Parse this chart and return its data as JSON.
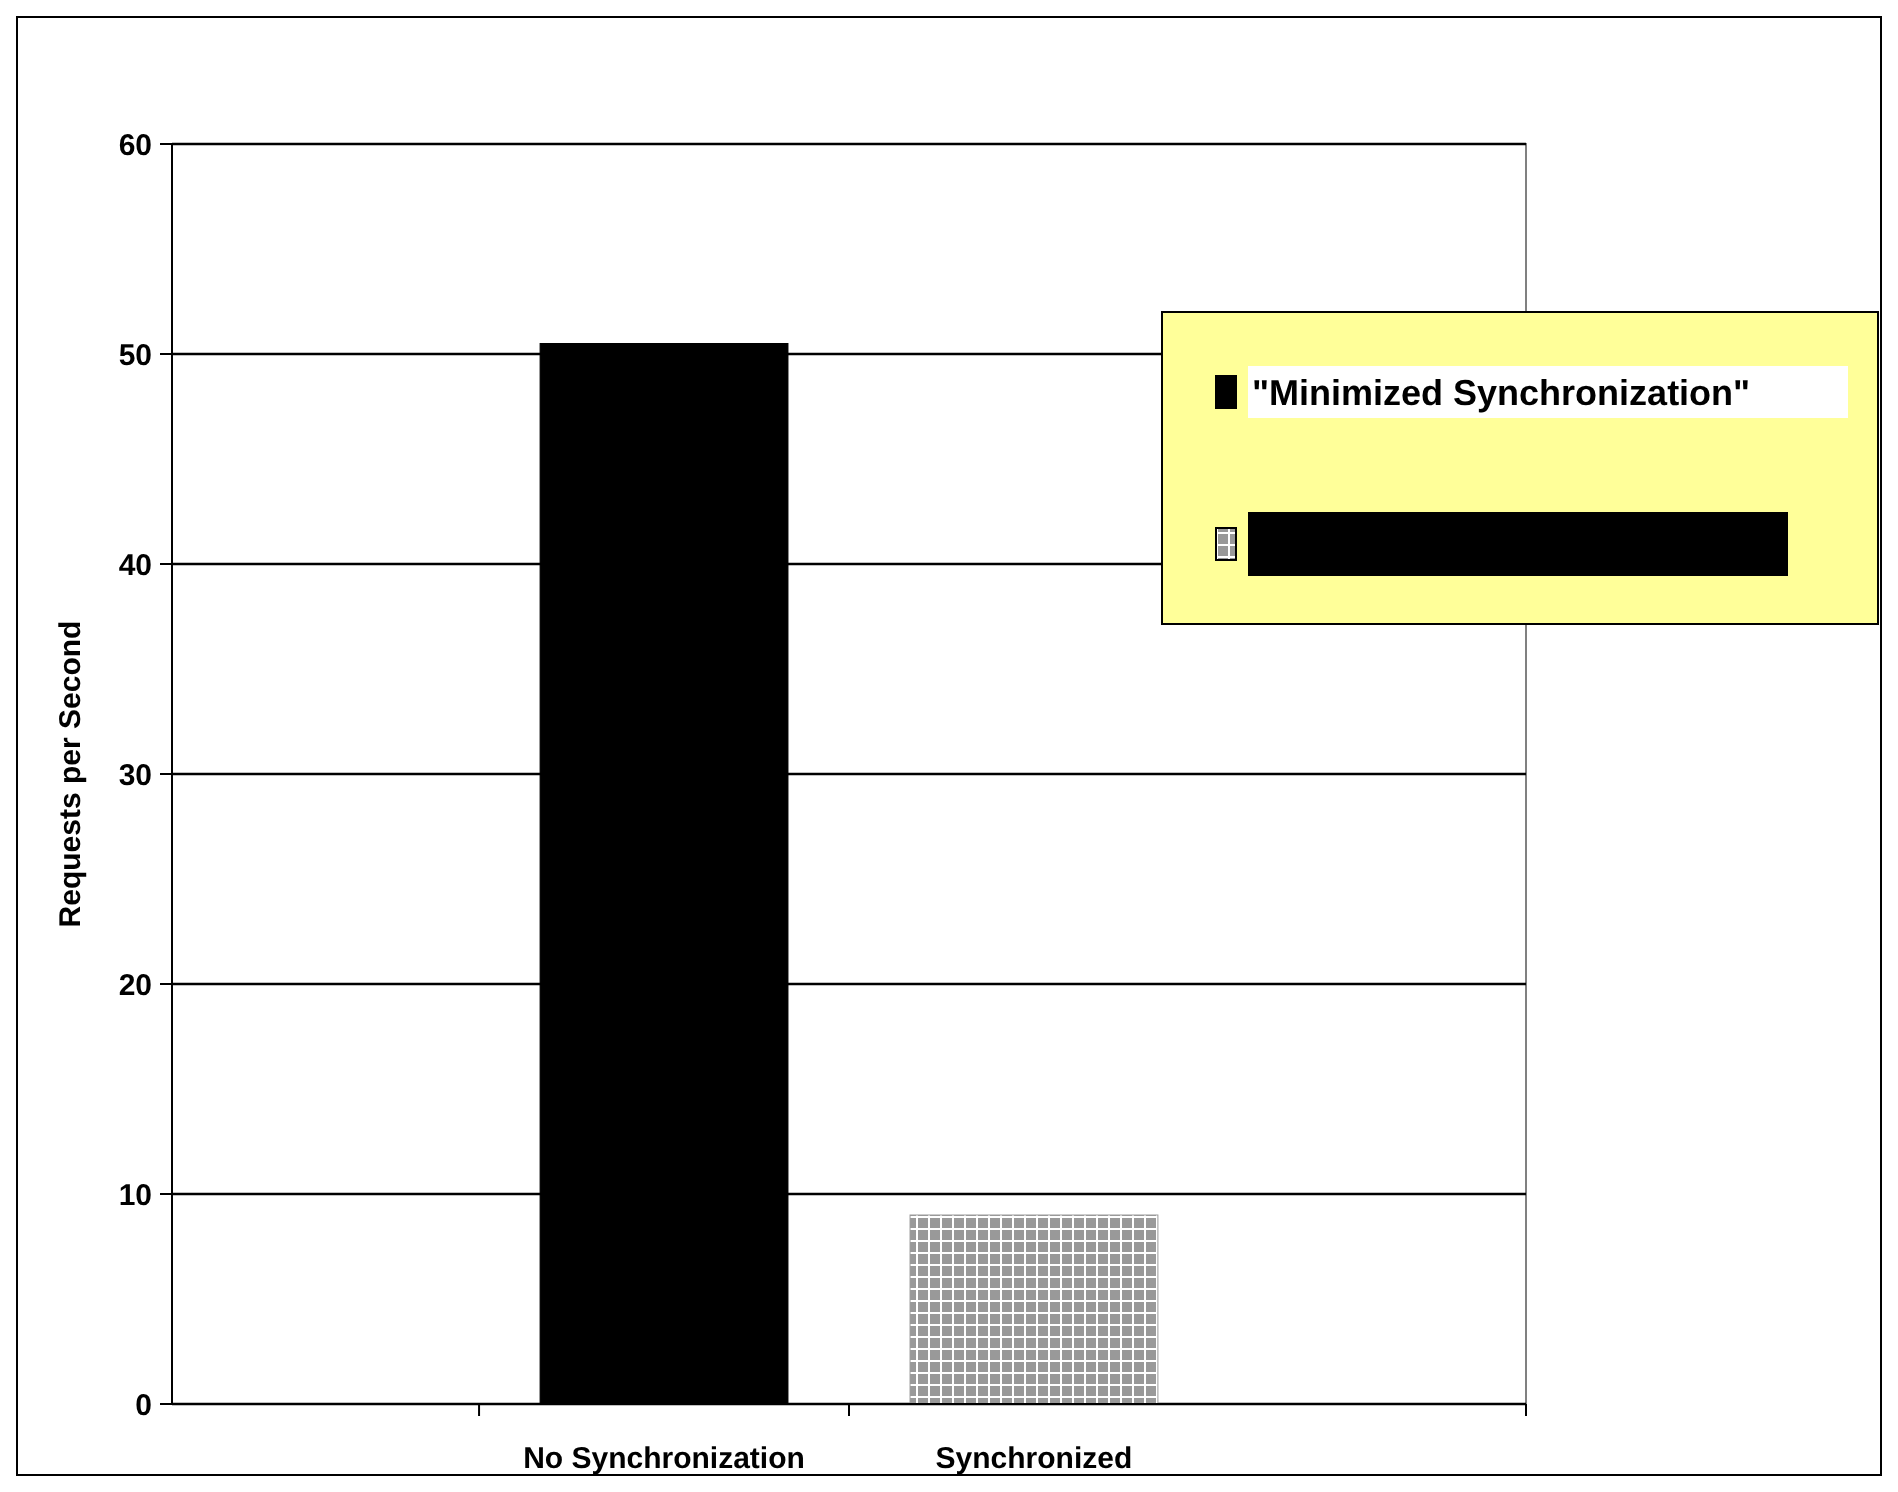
{
  "chart_data": {
    "type": "bar",
    "ylabel": "Requests per Second",
    "categories": [
      "No Synchronization",
      "Synchronized"
    ],
    "series": [
      {
        "name": "\"Minimized Synchronization\"",
        "color": "#000000",
        "values": [
          50.5,
          null
        ]
      },
      {
        "color": "#999999",
        "values": [
          null,
          9
        ]
      }
    ],
    "ylim": [
      0,
      60
    ],
    "yticks": [
      0,
      10,
      20,
      30,
      40,
      50,
      60
    ],
    "grid": "y",
    "legend": "top right"
  }
}
